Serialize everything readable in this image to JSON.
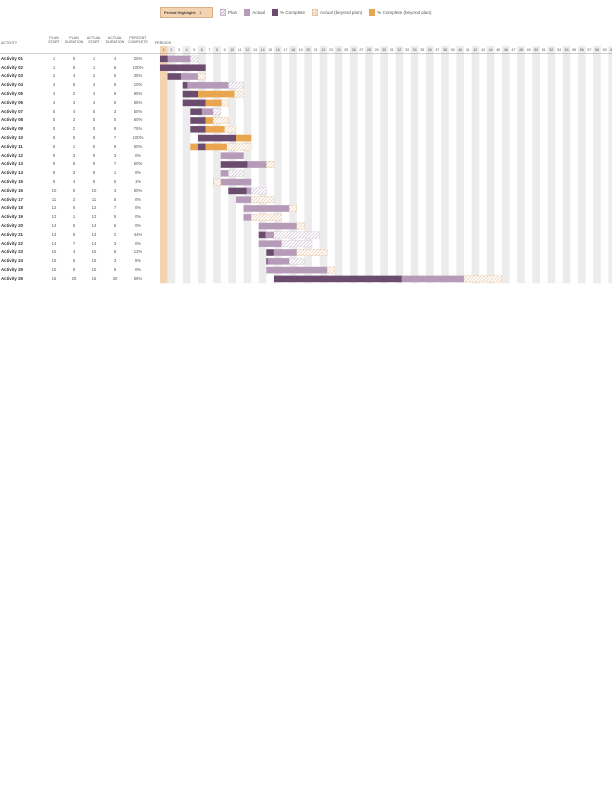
{
  "legend": {
    "period_highlight_label": "Period Highlight:",
    "period_highlight_value": "1",
    "plan": "Plan",
    "actual": "Actual",
    "percent_complete": "% Complete",
    "actual_beyond": "Actual (beyond plan)",
    "percent_beyond": "% Complete (beyond plan)"
  },
  "headers": {
    "activity": "ACTIVITY",
    "plan_start": [
      "PLAN",
      "START"
    ],
    "plan_duration": [
      "PLAN",
      "DURATION"
    ],
    "actual_start": [
      "ACTUAL",
      "START"
    ],
    "actual_duration": [
      "ACTUAL",
      "DURATION"
    ],
    "percent_complete": [
      "PERCENT",
      "COMPLETE"
    ],
    "periods": "PERIODS"
  },
  "colors": {
    "plan": "#c9b8cc",
    "actual": "#b59bb8",
    "complete": "#6b4b6e",
    "beyond": "#e8c3a0",
    "complete_beyond": "#e9a64f",
    "highlight": "#f4d3b0",
    "stripe": "#ececec"
  },
  "period_count": 60,
  "activities": [
    {
      "name": "Activity 01",
      "ps": 1,
      "pd": 5,
      "as": 1,
      "ad": 4,
      "pc": "25%"
    },
    {
      "name": "Activity 02",
      "ps": 1,
      "pd": 6,
      "as": 1,
      "ad": 6,
      "pc": "100%"
    },
    {
      "name": "Activity 03",
      "ps": 2,
      "pd": 4,
      "as": 2,
      "ad": 5,
      "pc": "35%"
    },
    {
      "name": "Activity 04",
      "ps": 4,
      "pd": 8,
      "as": 4,
      "ad": 6,
      "pc": "10%"
    },
    {
      "name": "Activity 05",
      "ps": 4,
      "pd": 2,
      "as": 4,
      "ad": 8,
      "pc": "85%"
    },
    {
      "name": "Activity 06",
      "ps": 4,
      "pd": 3,
      "as": 4,
      "ad": 6,
      "pc": "85%"
    },
    {
      "name": "Activity 07",
      "ps": 5,
      "pd": 4,
      "as": 5,
      "ad": 3,
      "pc": "50%"
    },
    {
      "name": "Activity 08",
      "ps": 5,
      "pd": 2,
      "as": 5,
      "ad": 5,
      "pc": "60%"
    },
    {
      "name": "Activity 09",
      "ps": 5,
      "pd": 2,
      "as": 5,
      "ad": 6,
      "pc": "75%"
    },
    {
      "name": "Activity 10",
      "ps": 6,
      "pd": 5,
      "as": 6,
      "ad": 7,
      "pc": "100%"
    },
    {
      "name": "Activity 11",
      "ps": 6,
      "pd": 1,
      "as": 5,
      "ad": 8,
      "pc": "60%"
    },
    {
      "name": "Activity 12",
      "ps": 9,
      "pd": 3,
      "as": 9,
      "ad": 3,
      "pc": "0%"
    },
    {
      "name": "Activity 13",
      "ps": 9,
      "pd": 6,
      "as": 9,
      "ad": 7,
      "pc": "50%"
    },
    {
      "name": "Activity 14",
      "ps": 9,
      "pd": 3,
      "as": 9,
      "ad": 1,
      "pc": "0%"
    },
    {
      "name": "Activity 15",
      "ps": 9,
      "pd": 4,
      "as": 8,
      "ad": 5,
      "pc": "1%"
    },
    {
      "name": "Activity 16",
      "ps": 10,
      "pd": 5,
      "as": 10,
      "ad": 3,
      "pc": "80%"
    },
    {
      "name": "Activity 17",
      "ps": 11,
      "pd": 2,
      "as": 11,
      "ad": 5,
      "pc": "0%"
    },
    {
      "name": "Activity 18",
      "ps": 12,
      "pd": 6,
      "as": 12,
      "ad": 7,
      "pc": "0%"
    },
    {
      "name": "Activity 19",
      "ps": 12,
      "pd": 1,
      "as": 12,
      "ad": 5,
      "pc": "0%"
    },
    {
      "name": "Activity 20",
      "ps": 14,
      "pd": 5,
      "as": 14,
      "ad": 6,
      "pc": "0%"
    },
    {
      "name": "Activity 21",
      "ps": 14,
      "pd": 8,
      "as": 14,
      "ad": 2,
      "pc": "44%"
    },
    {
      "name": "Activity 22",
      "ps": 14,
      "pd": 7,
      "as": 14,
      "ad": 3,
      "pc": "0%"
    },
    {
      "name": "Activity 23",
      "ps": 15,
      "pd": 4,
      "as": 15,
      "ad": 8,
      "pc": "12%"
    },
    {
      "name": "Activity 24",
      "ps": 15,
      "pd": 5,
      "as": 15,
      "ad": 3,
      "pc": "5%"
    },
    {
      "name": "Activity 25",
      "ps": 15,
      "pd": 8,
      "as": 15,
      "ad": 9,
      "pc": "0%"
    },
    {
      "name": "Activity 26",
      "ps": 16,
      "pd": 25,
      "as": 16,
      "ad": 30,
      "pc": "56%"
    }
  ]
}
